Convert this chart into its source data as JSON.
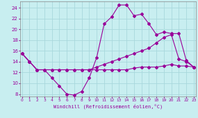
{
  "bg_color": "#c8eef0",
  "grid_color": "#a8d8dc",
  "line_color": "#990099",
  "xlim": [
    -0.3,
    23.3
  ],
  "ylim": [
    7.5,
    25.2
  ],
  "xticks": [
    0,
    1,
    2,
    3,
    4,
    5,
    6,
    7,
    8,
    9,
    10,
    11,
    12,
    13,
    14,
    15,
    16,
    17,
    18,
    19,
    20,
    21,
    22,
    23
  ],
  "yticks": [
    8,
    10,
    12,
    14,
    16,
    18,
    20,
    22,
    24
  ],
  "xlabel": "Windchill (Refroidissement éolien,°C)",
  "line1_x": [
    0,
    1,
    2,
    3,
    4,
    5,
    6,
    7,
    8,
    9,
    10,
    11,
    12,
    13,
    14,
    15,
    16,
    17,
    18,
    19,
    20,
    21,
    22,
    23
  ],
  "line1_y": [
    15.5,
    14.0,
    12.5,
    12.5,
    11.0,
    9.5,
    8.0,
    7.8,
    8.5,
    11.0,
    14.8,
    21.0,
    22.3,
    24.5,
    24.5,
    22.5,
    22.8,
    21.0,
    19.0,
    19.5,
    19.2,
    19.2,
    14.2,
    13.0
  ],
  "line2_x": [
    0,
    1,
    2,
    3,
    4,
    5,
    6,
    7,
    8,
    9,
    10,
    11,
    12,
    13,
    14,
    15,
    16,
    17,
    18,
    19,
    20,
    21,
    22,
    23
  ],
  "line2_y": [
    15.5,
    14.0,
    12.5,
    12.5,
    12.5,
    12.5,
    12.5,
    12.5,
    12.5,
    12.5,
    13.0,
    13.5,
    14.0,
    14.5,
    15.0,
    15.5,
    16.0,
    16.5,
    17.5,
    18.5,
    19.0,
    14.5,
    14.0,
    13.0
  ],
  "line3_x": [
    0,
    1,
    2,
    3,
    4,
    5,
    6,
    7,
    8,
    9,
    10,
    11,
    12,
    13,
    14,
    15,
    16,
    17,
    18,
    19,
    20,
    21,
    22,
    23
  ],
  "line3_y": [
    15.5,
    14.0,
    12.5,
    12.5,
    12.5,
    12.5,
    12.5,
    12.5,
    12.5,
    12.5,
    12.5,
    12.5,
    12.5,
    12.5,
    12.5,
    12.8,
    13.0,
    13.0,
    13.0,
    13.2,
    13.5,
    13.2,
    13.2,
    13.0
  ]
}
